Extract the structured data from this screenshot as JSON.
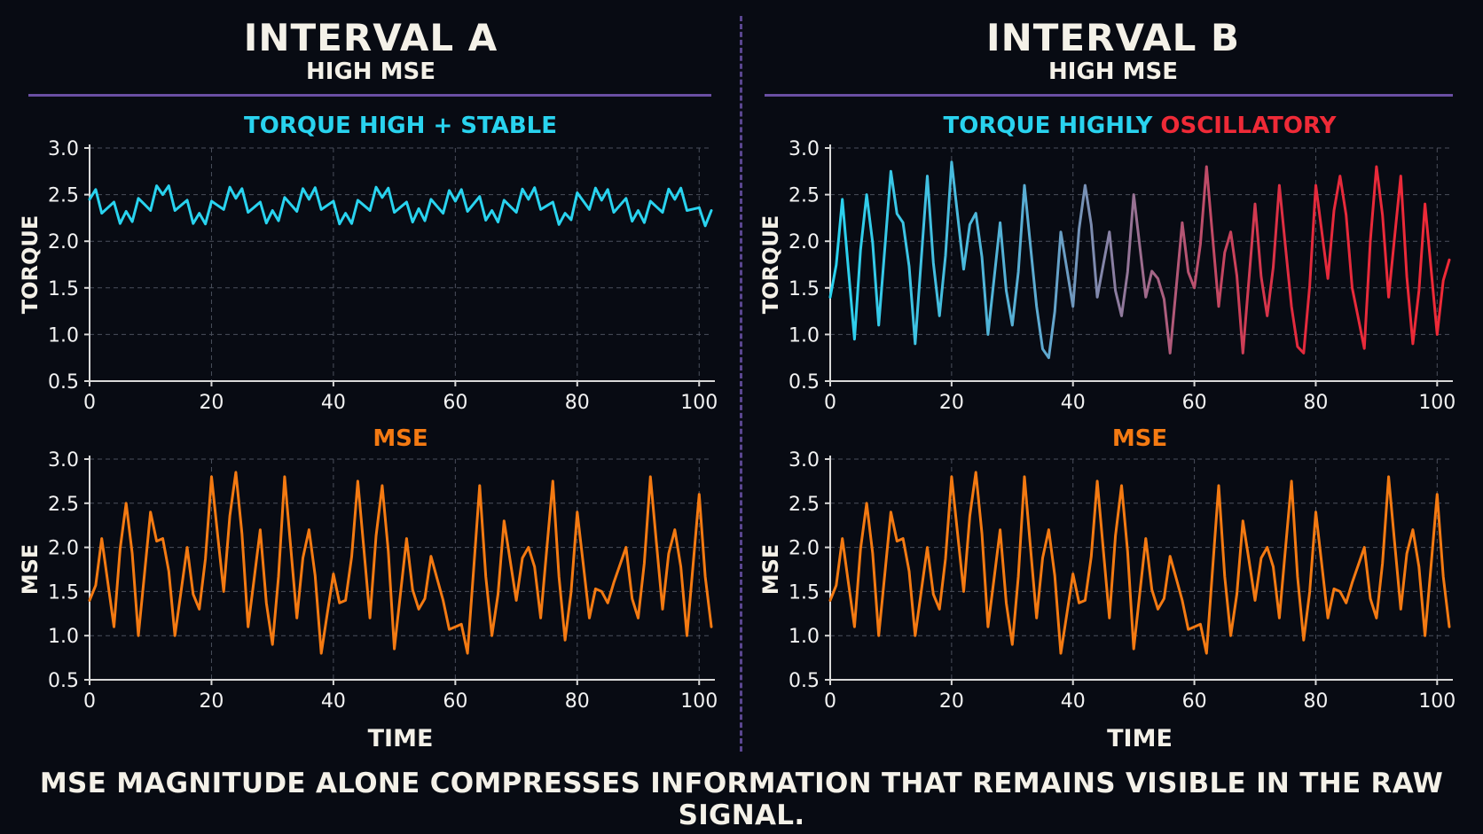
{
  "panels": {
    "a": {
      "title": "INTERVAL A",
      "subtitle": "HIGH MSE"
    },
    "b": {
      "title": "INTERVAL B",
      "subtitle": "HIGH MSE"
    }
  },
  "footer": "MSE MAGNITUDE ALONE COMPRESSES INFORMATION THAT REMAINS VISIBLE IN THE RAW SIGNAL.",
  "colors": {
    "torque": "#29d3ef",
    "oscillatory": "#ef2a37",
    "mse": "#f47a12",
    "grid": "#4a4f5c",
    "rule": "#6a4fa3"
  },
  "chart_data": [
    {
      "id": "a-torque",
      "type": "line",
      "title_parts": [
        {
          "text": "TORQUE HIGH + STABLE",
          "color": "#29d3ef"
        }
      ],
      "xlabel": "",
      "ylabel": "TORQUE",
      "xlim": [
        0,
        102
      ],
      "ylim": [
        0.5,
        3.0
      ],
      "xticks": [
        0,
        20,
        40,
        60,
        80,
        100
      ],
      "yticks": [
        0.5,
        1.0,
        1.5,
        2.0,
        2.5,
        3.0
      ],
      "grid": true,
      "color": "#29d3ef",
      "x": [
        0,
        2,
        4,
        6,
        8,
        10,
        12,
        14,
        16,
        18,
        20,
        22,
        24,
        26,
        28,
        30,
        32,
        34,
        36,
        38,
        40,
        42,
        44,
        46,
        48,
        50,
        52,
        54,
        56,
        58,
        60,
        62,
        64,
        66,
        68,
        70,
        72,
        74,
        76,
        78,
        80,
        82,
        84,
        86,
        88,
        90,
        92,
        94,
        96,
        98,
        100,
        102
      ],
      "y": [
        2.45,
        2.3,
        2.42,
        2.32,
        2.46,
        2.33,
        2.5,
        2.33,
        2.44,
        2.3,
        2.43,
        2.34,
        2.46,
        2.31,
        2.42,
        2.33,
        2.47,
        2.32,
        2.45,
        2.34,
        2.43,
        2.3,
        2.44,
        2.33,
        2.47,
        2.31,
        2.42,
        2.35,
        2.45,
        2.3,
        2.43,
        2.32,
        2.48,
        2.33,
        2.44,
        2.31,
        2.45,
        2.34,
        2.42,
        2.3,
        2.52,
        2.34,
        2.44,
        2.31,
        2.46,
        2.33,
        2.43,
        2.31,
        2.45,
        2.33,
        2.36,
        2.33
      ]
    },
    {
      "id": "a-mse",
      "type": "line",
      "title_parts": [
        {
          "text": "MSE",
          "color": "#f47a12"
        }
      ],
      "xlabel": "TIME",
      "ylabel": "MSE",
      "xlim": [
        0,
        102
      ],
      "ylim": [
        0.5,
        3.0
      ],
      "xticks": [
        0,
        20,
        40,
        60,
        80,
        100
      ],
      "yticks": [
        0.5,
        1.0,
        1.5,
        2.0,
        2.5,
        3.0
      ],
      "grid": true,
      "color": "#f47a12",
      "x": [
        0,
        2,
        4,
        6,
        8,
        10,
        12,
        14,
        16,
        18,
        20,
        22,
        24,
        26,
        28,
        30,
        32,
        34,
        36,
        38,
        40,
        42,
        44,
        46,
        48,
        50,
        52,
        54,
        56,
        58,
        60,
        62,
        64,
        66,
        68,
        70,
        72,
        74,
        76,
        78,
        80,
        82,
        84,
        86,
        88,
        90,
        92,
        94,
        96,
        98,
        100,
        102
      ],
      "y": [
        1.4,
        2.1,
        1.1,
        2.5,
        1.0,
        2.4,
        2.1,
        1.0,
        2.0,
        1.3,
        2.8,
        1.5,
        2.85,
        1.1,
        2.2,
        0.9,
        2.8,
        1.2,
        2.2,
        0.8,
        1.7,
        1.4,
        2.75,
        1.2,
        2.7,
        0.85,
        2.1,
        1.3,
        1.9,
        1.4,
        1.1,
        0.8,
        2.7,
        1.0,
        2.3,
        1.4,
        2.0,
        1.2,
        2.75,
        0.95,
        2.4,
        1.2,
        1.5,
        1.6,
        2.0,
        1.2,
        2.8,
        1.3,
        2.2,
        1.0,
        2.6,
        1.1
      ]
    },
    {
      "id": "b-torque",
      "type": "line",
      "title_parts": [
        {
          "text": "TORQUE HIGHLY ",
          "color": "#29d3ef"
        },
        {
          "text": "OSCILLATORY",
          "color": "#ef2a37"
        }
      ],
      "xlabel": "",
      "ylabel": "TORQUE",
      "xlim": [
        0,
        102
      ],
      "ylim": [
        0.5,
        3.0
      ],
      "xticks": [
        0,
        20,
        40,
        60,
        80,
        100
      ],
      "yticks": [
        0.5,
        1.0,
        1.5,
        2.0,
        2.5,
        3.0
      ],
      "grid": true,
      "gradient": [
        "#29d3ef",
        "#ef2a37"
      ],
      "x": [
        0,
        2,
        4,
        6,
        8,
        10,
        12,
        14,
        16,
        18,
        20,
        22,
        24,
        26,
        28,
        30,
        32,
        34,
        36,
        38,
        40,
        42,
        44,
        46,
        48,
        50,
        52,
        54,
        56,
        58,
        60,
        62,
        64,
        66,
        68,
        70,
        72,
        74,
        76,
        78,
        80,
        82,
        84,
        86,
        88,
        90,
        92,
        94,
        96,
        98,
        100,
        102
      ],
      "y": [
        1.4,
        2.45,
        0.95,
        2.5,
        1.1,
        2.75,
        2.2,
        0.9,
        2.7,
        1.2,
        2.85,
        1.7,
        2.3,
        1.0,
        2.2,
        1.1,
        2.6,
        1.3,
        0.75,
        2.1,
        1.3,
        2.6,
        1.4,
        2.1,
        1.2,
        2.5,
        1.4,
        1.6,
        0.8,
        2.2,
        1.5,
        2.8,
        1.3,
        2.1,
        0.8,
        2.4,
        1.2,
        2.6,
        1.3,
        0.8,
        2.6,
        1.6,
        2.7,
        1.5,
        0.85,
        2.8,
        1.4,
        2.7,
        0.9,
        2.4,
        1.0,
        1.8
      ]
    },
    {
      "id": "b-mse",
      "type": "line",
      "title_parts": [
        {
          "text": "MSE",
          "color": "#f47a12"
        }
      ],
      "xlabel": "TIME",
      "ylabel": "MSE",
      "xlim": [
        0,
        102
      ],
      "ylim": [
        0.5,
        3.0
      ],
      "xticks": [
        0,
        20,
        40,
        60,
        80,
        100
      ],
      "yticks": [
        0.5,
        1.0,
        1.5,
        2.0,
        2.5,
        3.0
      ],
      "grid": true,
      "color": "#f47a12",
      "x": [
        0,
        2,
        4,
        6,
        8,
        10,
        12,
        14,
        16,
        18,
        20,
        22,
        24,
        26,
        28,
        30,
        32,
        34,
        36,
        38,
        40,
        42,
        44,
        46,
        48,
        50,
        52,
        54,
        56,
        58,
        60,
        62,
        64,
        66,
        68,
        70,
        72,
        74,
        76,
        78,
        80,
        82,
        84,
        86,
        88,
        90,
        92,
        94,
        96,
        98,
        100,
        102
      ],
      "y": [
        1.4,
        2.1,
        1.1,
        2.5,
        1.0,
        2.4,
        2.1,
        1.0,
        2.0,
        1.3,
        2.8,
        1.5,
        2.85,
        1.1,
        2.2,
        0.9,
        2.8,
        1.2,
        2.2,
        0.8,
        1.7,
        1.4,
        2.75,
        1.2,
        2.7,
        0.85,
        2.1,
        1.3,
        1.9,
        1.4,
        1.1,
        0.8,
        2.7,
        1.0,
        2.3,
        1.4,
        2.0,
        1.2,
        2.75,
        0.95,
        2.4,
        1.2,
        1.5,
        1.6,
        2.0,
        1.2,
        2.8,
        1.3,
        2.2,
        1.0,
        2.6,
        1.1
      ]
    }
  ]
}
